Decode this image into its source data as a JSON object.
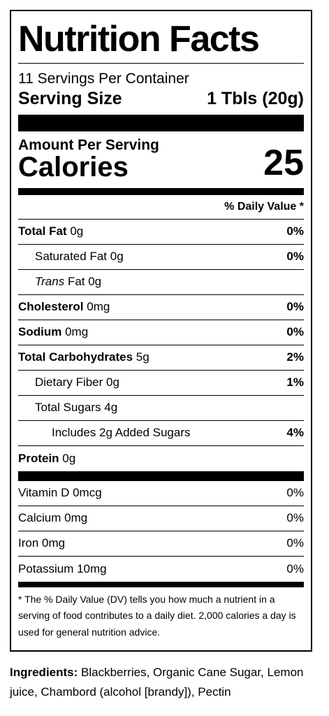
{
  "label": {
    "title": "Nutrition Facts",
    "servings_per_container": "11 Servings Per Container",
    "serving_size_label": "Serving Size",
    "serving_size_value": "1 Tbls (20g)",
    "amount_per_serving": "Amount Per Serving",
    "calories_label": "Calories",
    "calories_value": "25",
    "daily_value_header": "% Daily Value *",
    "nutrients": [
      {
        "name": "Total Fat",
        "amount": "0g",
        "dv": "0%"
      },
      {
        "name": "Saturated Fat",
        "amount": "0g",
        "dv": "0%"
      },
      {
        "name": "Trans",
        "amount": "Fat 0g",
        "dv": ""
      },
      {
        "name": "Cholesterol",
        "amount": "0mg",
        "dv": "0%"
      },
      {
        "name": "Sodium",
        "amount": "0mg",
        "dv": "0%"
      },
      {
        "name": "Total Carbohydrates",
        "amount": "5g",
        "dv": "2%"
      },
      {
        "name": "Dietary Fiber",
        "amount": "0g",
        "dv": "1%"
      },
      {
        "name": "Total Sugars",
        "amount": "4g",
        "dv": ""
      },
      {
        "name": "Includes 2g Added Sugars",
        "amount": "",
        "dv": "4%"
      },
      {
        "name": "Protein",
        "amount": "0g",
        "dv": ""
      }
    ],
    "vitamins": [
      {
        "name": "Vitamin D 0mcg",
        "dv": "0%"
      },
      {
        "name": "Calcium 0mg",
        "dv": "0%"
      },
      {
        "name": "Iron 0mg",
        "dv": "0%"
      },
      {
        "name": "Potassium 10mg",
        "dv": "0%"
      }
    ],
    "footnote": "* The % Daily Value (DV) tells you how much a nutrient in a serving of food contributes to a daily diet. 2,000 calories a day is used for general nutrition advice."
  },
  "ingredients": {
    "label": "Ingredients:",
    "text": "Blackberries, Organic Cane Sugar, Lemon juice, Chambord (alcohol [brandy]), Pectin"
  }
}
